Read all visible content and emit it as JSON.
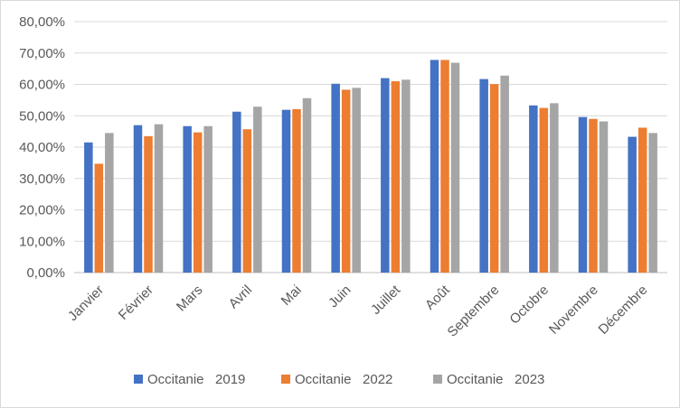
{
  "chart_data": {
    "type": "bar",
    "categories": [
      "Janvier",
      "Février",
      "Mars",
      "Avril",
      "Mai",
      "Juin",
      "Juillet",
      "Août",
      "Septembre",
      "Octobre",
      "Novembre",
      "Décembre"
    ],
    "series": [
      {
        "name": "Occitanie   2019",
        "color": "#4472c4",
        "values": [
          41.5,
          47.0,
          46.7,
          51.3,
          51.9,
          60.2,
          62.0,
          67.8,
          61.7,
          53.3,
          49.6,
          43.3
        ]
      },
      {
        "name": "Occitanie   2022",
        "color": "#ed7d31",
        "values": [
          34.7,
          43.5,
          44.7,
          45.7,
          52.1,
          58.3,
          61.0,
          67.8,
          60.1,
          52.5,
          49.0,
          46.2
        ]
      },
      {
        "name": "Occitanie   2023",
        "color": "#a5a5a5",
        "values": [
          44.5,
          47.3,
          46.7,
          52.9,
          55.6,
          58.9,
          61.5,
          66.9,
          62.8,
          54.0,
          48.2,
          44.5
        ]
      }
    ],
    "yticks": [
      "0,00%",
      "10,00%",
      "20,00%",
      "30,00%",
      "40,00%",
      "50,00%",
      "60,00%",
      "70,00%",
      "80,00%"
    ],
    "ylim": [
      0,
      80
    ],
    "grid": true,
    "legend": "bottom",
    "title": "",
    "xlabel": "",
    "ylabel": ""
  }
}
